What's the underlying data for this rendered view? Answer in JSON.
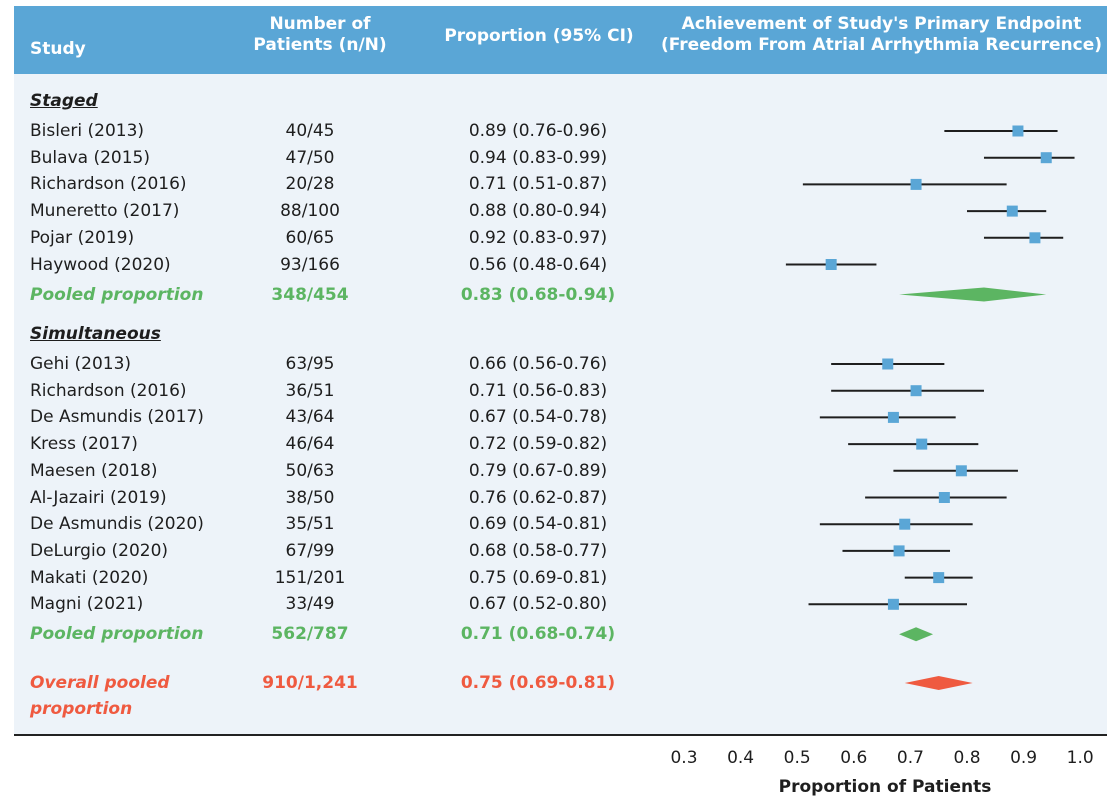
{
  "header": {
    "study": "Study",
    "patients_line1": "Number of",
    "patients_line2": "Patients (n/N)",
    "proportion": "Proportion (95% CI)",
    "endpoint_line1": "Achievement of Study's Primary Endpoint",
    "endpoint_line2": "(Freedom From Atrial Arrhythmia Recurrence)"
  },
  "colors": {
    "header_bg": "#5aa6d6",
    "panel_bg": "#edf3f9",
    "marker": "#5aa6d6",
    "subgroup_pooled": "#5cb562",
    "overall_pooled": "#ef5a40"
  },
  "chart_data": {
    "type": "forest",
    "xlabel": "Proportion of Patients",
    "xlim": [
      0.3,
      1.0
    ],
    "xticks": [
      "0.3",
      "0.4",
      "0.5",
      "0.6",
      "0.7",
      "0.8",
      "0.9",
      "1.0"
    ],
    "groups": [
      {
        "name": "Staged",
        "studies": [
          {
            "study": "Bisleri (2013)",
            "n": "40/45",
            "ci_text": "0.89 (0.76-0.96)",
            "est": 0.89,
            "lo": 0.76,
            "hi": 0.96
          },
          {
            "study": "Bulava (2015)",
            "n": "47/50",
            "ci_text": "0.94 (0.83-0.99)",
            "est": 0.94,
            "lo": 0.83,
            "hi": 0.99
          },
          {
            "study": "Richardson (2016)",
            "n": "20/28",
            "ci_text": "0.71 (0.51-0.87)",
            "est": 0.71,
            "lo": 0.51,
            "hi": 0.87
          },
          {
            "study": "Muneretto (2017)",
            "n": "88/100",
            "ci_text": "0.88 (0.80-0.94)",
            "est": 0.88,
            "lo": 0.8,
            "hi": 0.94
          },
          {
            "study": "Pojar (2019)",
            "n": "60/65",
            "ci_text": "0.92 (0.83-0.97)",
            "est": 0.92,
            "lo": 0.83,
            "hi": 0.97
          },
          {
            "study": "Haywood (2020)",
            "n": "93/166",
            "ci_text": "0.56 (0.48-0.64)",
            "est": 0.56,
            "lo": 0.48,
            "hi": 0.64
          }
        ],
        "pooled": {
          "label": "Pooled proportion",
          "n": "348/454",
          "ci_text": "0.83 (0.68-0.94)",
          "est": 0.83,
          "lo": 0.68,
          "hi": 0.94
        }
      },
      {
        "name": "Simultaneous",
        "studies": [
          {
            "study": "Gehi (2013)",
            "n": "63/95",
            "ci_text": "0.66 (0.56-0.76)",
            "est": 0.66,
            "lo": 0.56,
            "hi": 0.76
          },
          {
            "study": "Richardson (2016)",
            "n": "36/51",
            "ci_text": "0.71 (0.56-0.83)",
            "est": 0.71,
            "lo": 0.56,
            "hi": 0.83
          },
          {
            "study": "De Asmundis (2017)",
            "n": "43/64",
            "ci_text": "0.67 (0.54-0.78)",
            "est": 0.67,
            "lo": 0.54,
            "hi": 0.78
          },
          {
            "study": "Kress (2017)",
            "n": "46/64",
            "ci_text": "0.72 (0.59-0.82)",
            "est": 0.72,
            "lo": 0.59,
            "hi": 0.82
          },
          {
            "study": "Maesen (2018)",
            "n": "50/63",
            "ci_text": "0.79 (0.67-0.89)",
            "est": 0.79,
            "lo": 0.67,
            "hi": 0.89
          },
          {
            "study": "Al-Jazairi (2019)",
            "n": "38/50",
            "ci_text": "0.76 (0.62-0.87)",
            "est": 0.76,
            "lo": 0.62,
            "hi": 0.87
          },
          {
            "study": "De Asmundis (2020)",
            "n": "35/51",
            "ci_text": "0.69 (0.54-0.81)",
            "est": 0.69,
            "lo": 0.54,
            "hi": 0.81
          },
          {
            "study": "DeLurgio (2020)",
            "n": "67/99",
            "ci_text": "0.68 (0.58-0.77)",
            "est": 0.68,
            "lo": 0.58,
            "hi": 0.77
          },
          {
            "study": "Makati (2020)",
            "n": "151/201",
            "ci_text": "0.75 (0.69-0.81)",
            "est": 0.75,
            "lo": 0.69,
            "hi": 0.81
          },
          {
            "study": "Magni (2021)",
            "n": "33/49",
            "ci_text": "0.67 (0.52-0.80)",
            "est": 0.67,
            "lo": 0.52,
            "hi": 0.8
          }
        ],
        "pooled": {
          "label": "Pooled proportion",
          "n": "562/787",
          "ci_text": "0.71 (0.68-0.74)",
          "est": 0.71,
          "lo": 0.68,
          "hi": 0.74
        }
      }
    ],
    "overall": {
      "label": "Overall pooled proportion",
      "n": "910/1,241",
      "ci_text": "0.75 (0.69-0.81)",
      "est": 0.75,
      "lo": 0.69,
      "hi": 0.81
    }
  }
}
